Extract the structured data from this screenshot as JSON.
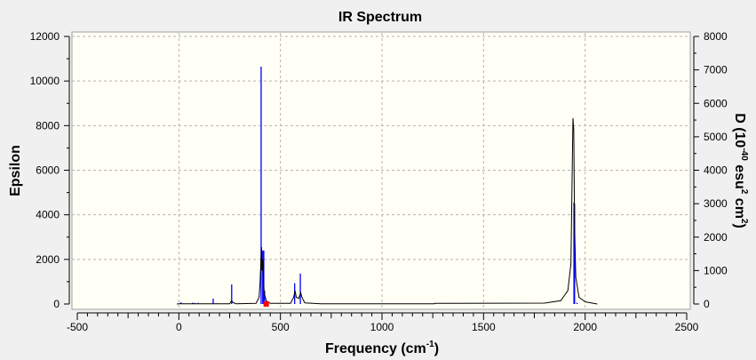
{
  "chart_data": {
    "type": "line",
    "title": "IR Spectrum",
    "xlabel": "Frequency (cm",
    "xlabel_sup": "-1",
    "xlabel_end": ")",
    "ylabel": "Epsilon",
    "y2label_parts": [
      "D (10",
      "-40",
      " esu",
      "2",
      " cm",
      "2",
      ")"
    ],
    "xlim": [
      -500,
      2500
    ],
    "ylim": [
      0,
      12000
    ],
    "y2lim": [
      0,
      8000
    ],
    "xticks": [
      "-500",
      "0",
      "500",
      "1000",
      "1500",
      "2000",
      "2500"
    ],
    "yticks": [
      "0",
      "2000",
      "4000",
      "6000",
      "8000",
      "10000",
      "12000"
    ],
    "y2ticks": [
      "0",
      "1000",
      "2000",
      "3000",
      "4000",
      "5000",
      "6000",
      "7000",
      "8000"
    ],
    "grid": true,
    "colors": {
      "spectrum": "#000000",
      "sticks": "#0000ff",
      "marker": "#ff0000",
      "plot_bg": "#fffff5",
      "grid": "#b4b4b4"
    },
    "series": [
      {
        "axis": "left",
        "points": [
          [
            -10,
            0
          ],
          [
            0,
            10
          ],
          [
            250,
            10
          ],
          [
            255,
            80
          ],
          [
            260,
            150
          ],
          [
            265,
            80
          ],
          [
            280,
            10
          ],
          [
            380,
            30
          ],
          [
            395,
            300
          ],
          [
            400,
            1000
          ],
          [
            404,
            2000
          ],
          [
            407,
            2550
          ],
          [
            410,
            1500
          ],
          [
            413,
            2000
          ],
          [
            416,
            1200
          ],
          [
            420,
            500
          ],
          [
            430,
            150
          ],
          [
            450,
            30
          ],
          [
            550,
            30
          ],
          [
            565,
            300
          ],
          [
            572,
            600
          ],
          [
            578,
            300
          ],
          [
            590,
            250
          ],
          [
            600,
            500
          ],
          [
            606,
            300
          ],
          [
            620,
            50
          ],
          [
            700,
            10
          ],
          [
            1258,
            10
          ],
          [
            1260,
            30
          ],
          [
            1800,
            40
          ],
          [
            1880,
            150
          ],
          [
            1915,
            600
          ],
          [
            1930,
            1800
          ],
          [
            1936,
            5700
          ],
          [
            1940,
            8330
          ],
          [
            1944,
            7800
          ],
          [
            1948,
            3500
          ],
          [
            1954,
            1200
          ],
          [
            1970,
            300
          ],
          [
            2000,
            100
          ],
          [
            2060,
            0
          ]
        ]
      },
      {
        "axis": "right",
        "type": "stick",
        "points": [
          [
            10,
            50
          ],
          [
            68,
            40
          ],
          [
            78,
            30
          ],
          [
            95,
            35
          ],
          [
            130,
            15
          ],
          [
            169,
            160
          ],
          [
            185,
            20
          ],
          [
            260,
            585
          ],
          [
            405,
            7100
          ],
          [
            413,
            1600
          ],
          [
            418,
            1600
          ],
          [
            422,
            400
          ],
          [
            570,
            620
          ],
          [
            598,
            910
          ],
          [
            1945,
            3030
          ],
          [
            1948,
            3000
          ],
          [
            1960,
            40
          ]
        ]
      }
    ],
    "marker": {
      "x": 430,
      "y": 0
    }
  }
}
